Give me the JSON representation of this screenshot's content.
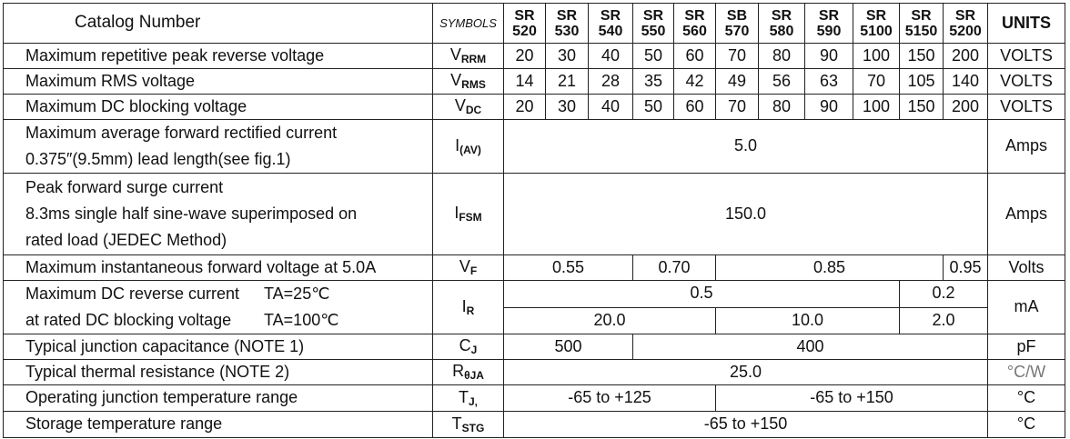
{
  "header": {
    "catalog": "Catalog Number",
    "symbols": "SYMBOLS",
    "units": "UNITS",
    "parts": [
      [
        "SR",
        "520"
      ],
      [
        "SR",
        "530"
      ],
      [
        "SR",
        "540"
      ],
      [
        "SR",
        "550"
      ],
      [
        "SR",
        "560"
      ],
      [
        "SB",
        "570"
      ],
      [
        "SR",
        "580"
      ],
      [
        "SR",
        "590"
      ],
      [
        "SR",
        "5100"
      ],
      [
        "SR",
        "5150"
      ],
      [
        "SR",
        "5200"
      ]
    ]
  },
  "rows": {
    "vrrm": {
      "label": "Maximum repetitive peak reverse voltage",
      "sym": "V",
      "sub": "RRM",
      "values": [
        "20",
        "30",
        "40",
        "50",
        "60",
        "70",
        "80",
        "90",
        "100",
        "150",
        "200"
      ],
      "unit": "VOLTS"
    },
    "vrms": {
      "label": "Maximum RMS voltage",
      "sym": "V",
      "sub": "RMS",
      "values": [
        "14",
        "21",
        "28",
        "35",
        "42",
        "49",
        "56",
        "63",
        "70",
        "105",
        "140"
      ],
      "unit": "VOLTS"
    },
    "vdc": {
      "label": "Maximum DC blocking voltage",
      "sym": "V",
      "sub": "DC",
      "values": [
        "20",
        "30",
        "40",
        "50",
        "60",
        "70",
        "80",
        "90",
        "100",
        "150",
        "200"
      ],
      "unit": "VOLTS"
    },
    "iav": {
      "label1": "Maximum average forward rectified current",
      "label2": "0.375″(9.5mm) lead length(see fig.1)",
      "sym": "I",
      "sub": "(AV)",
      "value": "5.0",
      "unit": "Amps"
    },
    "ifsm": {
      "label1": "Peak forward surge current",
      "label2": "8.3ms single half sine-wave superimposed on",
      "label3": "rated load (JEDEC Method)",
      "sym": "I",
      "sub": "FSM",
      "value": "150.0",
      "unit": "Amps"
    },
    "vf": {
      "label": "Maximum instantaneous forward voltage at 5.0A",
      "sym": "V",
      "sub": "F",
      "values": [
        "0.55",
        "0.70",
        "0.85",
        "0.95"
      ],
      "unit": "Volts"
    },
    "ir": {
      "label1": "Maximum DC reverse current",
      "cond1": "TA=25℃",
      "label2": "at rated DC blocking voltage",
      "cond2": "TA=100℃",
      "sym": "I",
      "sub": "R",
      "values25": [
        "0.5",
        "0.2"
      ],
      "values100": [
        "20.0",
        "10.0",
        "2.0"
      ],
      "unit": "mA"
    },
    "cj": {
      "label": "Typical junction capacitance (NOTE 1)",
      "sym": "C",
      "sub": "J",
      "values": [
        "500",
        "400"
      ],
      "unit": "pF"
    },
    "rth": {
      "label": "Typical thermal resistance (NOTE 2)",
      "sym": "R",
      "sub": "θJA",
      "value": "25.0",
      "unit": "°C/W"
    },
    "tj": {
      "label": "Operating junction temperature range",
      "sym": "T",
      "sub": "J,",
      "values": [
        "-65 to +125",
        "-65 to +150"
      ],
      "unit": "°C"
    },
    "tstg": {
      "label": "Storage temperature range",
      "sym": "T",
      "sub": "STG",
      "value": "-65 to +150",
      "unit": "°C"
    }
  }
}
